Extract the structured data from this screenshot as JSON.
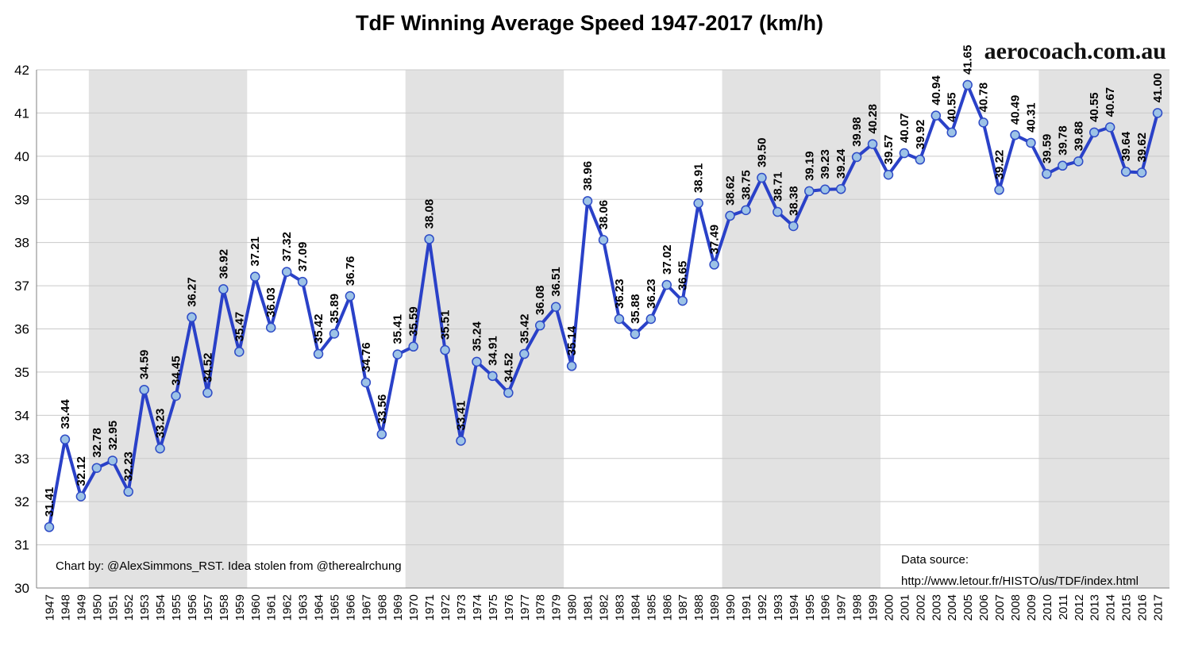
{
  "title": "TdF Winning Average Speed 1947-2017 (km/h)",
  "watermark": "aerocoach.com.au",
  "credit": "Chart by: @AlexSimmons_RST. Idea stolen from @therealrchung",
  "data_source": {
    "label": "Data source:",
    "url": "http://www.letour.fr/HISTO/us/TDF/index.html"
  },
  "chart_data": {
    "type": "line",
    "title": "TdF Winning Average Speed 1947-2017 (km/h)",
    "xlabel": "",
    "ylabel": "",
    "ylim": [
      30,
      42
    ],
    "y_ticks": [
      30,
      31,
      32,
      33,
      34,
      35,
      36,
      37,
      38,
      39,
      40,
      41,
      42
    ],
    "grid": true,
    "legend": "none",
    "categories": [
      "1947",
      "1948",
      "1949",
      "1950",
      "1951",
      "1952",
      "1953",
      "1954",
      "1955",
      "1956",
      "1957",
      "1958",
      "1959",
      "1960",
      "1961",
      "1962",
      "1963",
      "1964",
      "1965",
      "1966",
      "1967",
      "1968",
      "1969",
      "1970",
      "1971",
      "1972",
      "1973",
      "1974",
      "1975",
      "1976",
      "1977",
      "1978",
      "1979",
      "1980",
      "1981",
      "1982",
      "1983",
      "1984",
      "1985",
      "1986",
      "1987",
      "1988",
      "1989",
      "1990",
      "1991",
      "1992",
      "1993",
      "1994",
      "1995",
      "1996",
      "1997",
      "1998",
      "1999",
      "2000",
      "2001",
      "2002",
      "2003",
      "2004",
      "2005",
      "2006",
      "2007",
      "2008",
      "2009",
      "2010",
      "2011",
      "2012",
      "2013",
      "2014",
      "2015",
      "2016",
      "2017"
    ],
    "values": [
      31.41,
      33.44,
      32.12,
      32.78,
      32.95,
      32.23,
      34.59,
      33.23,
      34.45,
      36.27,
      34.52,
      36.92,
      35.47,
      37.21,
      36.03,
      37.32,
      37.09,
      35.42,
      35.89,
      36.76,
      34.76,
      33.56,
      35.41,
      35.59,
      38.08,
      35.51,
      33.41,
      35.24,
      34.91,
      34.52,
      35.42,
      36.08,
      36.51,
      35.14,
      38.96,
      38.06,
      36.23,
      35.88,
      36.23,
      37.02,
      36.65,
      38.91,
      37.49,
      38.62,
      38.75,
      39.5,
      38.71,
      38.38,
      39.19,
      39.23,
      39.24,
      39.98,
      40.28,
      39.57,
      40.07,
      39.92,
      40.94,
      40.55,
      41.65,
      40.78,
      39.22,
      40.49,
      40.31,
      39.59,
      39.78,
      39.88,
      40.55,
      40.67,
      39.64,
      39.62,
      41.0
    ],
    "decade_bands": [
      [
        "1950",
        "1959"
      ],
      [
        "1970",
        "1979"
      ],
      [
        "1990",
        "1999"
      ],
      [
        "2010",
        "2017"
      ]
    ],
    "colors": {
      "line": "#2a41c8",
      "marker_fill": "#9dc3e6",
      "marker_stroke": "#2e4bc6",
      "band": "#e2e2e2",
      "gridline": "#c9c9c9",
      "axis": "#808080",
      "text": "#000000"
    }
  }
}
